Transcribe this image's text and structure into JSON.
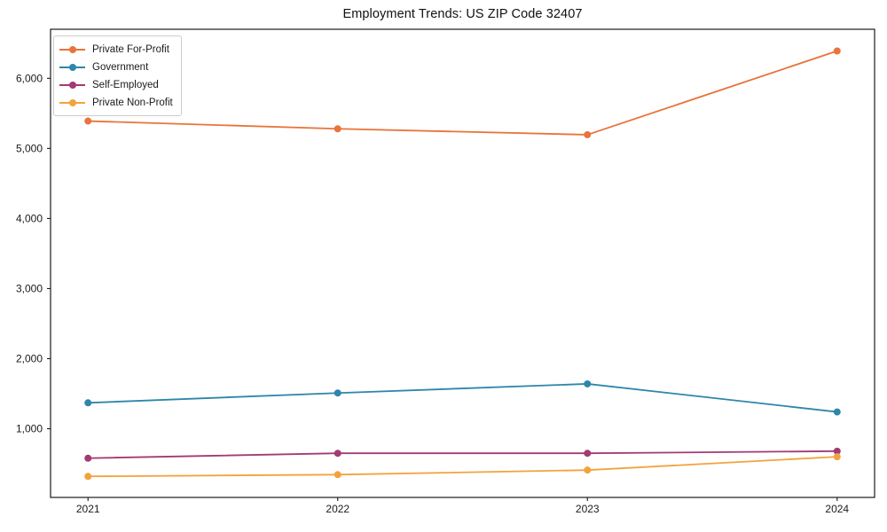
{
  "chart_data": {
    "type": "line",
    "title": "Employment Trends: US ZIP Code 32407",
    "xlabel": "",
    "ylabel": "",
    "x": [
      2021,
      2022,
      2023,
      2024
    ],
    "x_tick_labels": [
      "2021",
      "2022",
      "2023",
      "2024"
    ],
    "y_ticks": [
      1000,
      2000,
      3000,
      4000,
      5000,
      6000
    ],
    "y_tick_labels": [
      "1,000",
      "2,000",
      "3,000",
      "4,000",
      "5,000",
      "6,000"
    ],
    "xlim": [
      2020.85,
      2024.15
    ],
    "ylim": [
      20,
      6700
    ],
    "grid": false,
    "legend_position": "upper-left",
    "series": [
      {
        "name": "Private For-Profit",
        "color": "#E8743B",
        "values": [
          5390,
          5280,
          5195,
          6390
        ]
      },
      {
        "name": "Government",
        "color": "#2E86AB",
        "values": [
          1370,
          1510,
          1640,
          1240
        ]
      },
      {
        "name": "Self-Employed",
        "color": "#A23B72",
        "values": [
          580,
          650,
          650,
          680
        ]
      },
      {
        "name": "Private Non-Profit",
        "color": "#F2A33C",
        "values": [
          320,
          345,
          410,
          600
        ]
      }
    ]
  }
}
